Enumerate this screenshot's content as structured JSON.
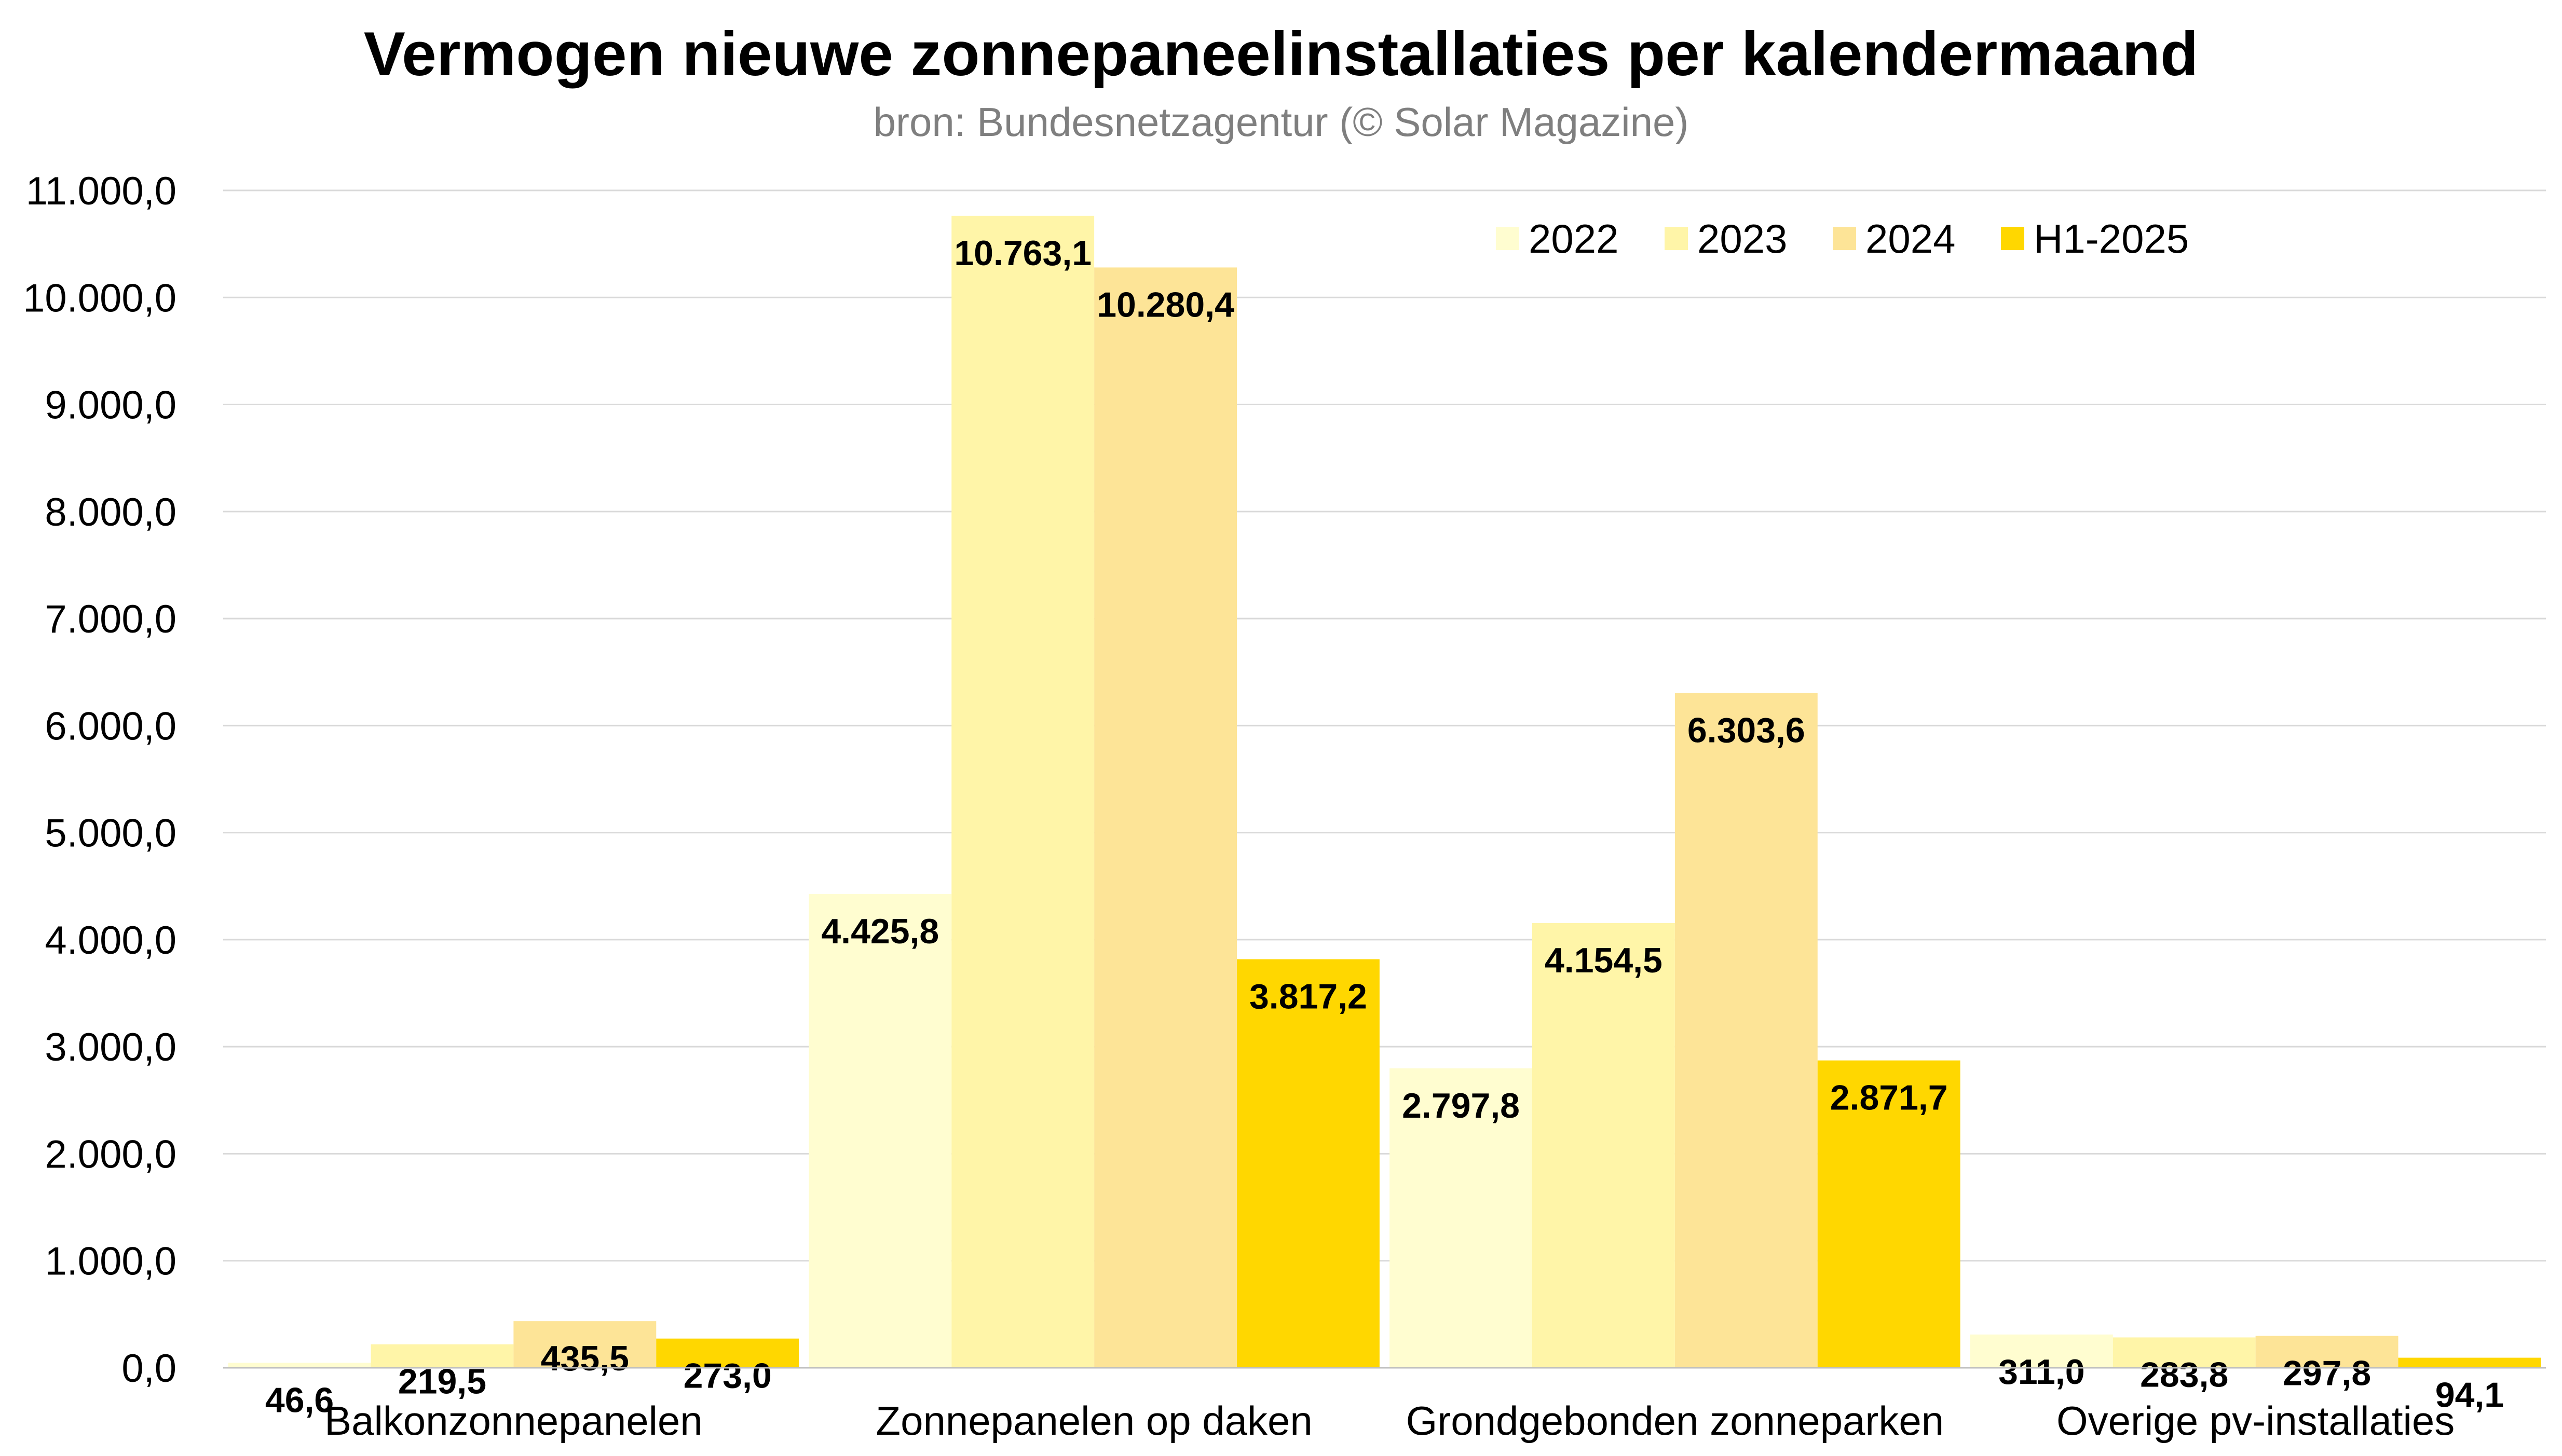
{
  "chart_data": {
    "type": "bar",
    "title": "Vermogen nieuwe zonnepaneelinstallaties per kalendermaand",
    "subtitle": "bron: Bundesnetzagentur (© Solar Magazine)",
    "xlabel": "",
    "ylabel": "",
    "ylim": [
      0,
      11000
    ],
    "ytick_step": 1000,
    "yticks": [
      "0,0",
      "1.000,0",
      "2.000,0",
      "3.000,0",
      "4.000,0",
      "5.000,0",
      "6.000,0",
      "7.000,0",
      "8.000,0",
      "9.000,0",
      "10.000,0",
      "11.000,0"
    ],
    "grid": true,
    "legend_position": "top-right",
    "categories": [
      "Balkonzonnepanelen",
      "Zonnepanelen op daken",
      "Grondgebonden zonneparken",
      "Overige pv-installaties"
    ],
    "series": [
      {
        "name": "2022",
        "color": "#FFFDD0",
        "values": [
          46.6,
          4425.8,
          2797.8,
          311.0
        ],
        "labels": [
          "46,6",
          "4.425,8",
          "2.797,8",
          "311,0"
        ]
      },
      {
        "name": "2023",
        "color": "#FFF5A8",
        "values": [
          219.5,
          10763.1,
          4154.5,
          283.8
        ],
        "labels": [
          "219,5",
          "10.763,1",
          "4.154,5",
          "283,8"
        ]
      },
      {
        "name": "2024",
        "color": "#FDE497",
        "values": [
          435.5,
          10280.4,
          6303.6,
          297.8
        ],
        "labels": [
          "435,5",
          "10.280,4",
          "6.303,6",
          "297,8"
        ]
      },
      {
        "name": "H1-2025",
        "color": "#FFD700",
        "values": [
          273.0,
          3817.2,
          2871.7,
          94.1
        ],
        "labels": [
          "273,0",
          "3.817,2",
          "2.871,7",
          "94,1"
        ]
      }
    ]
  }
}
